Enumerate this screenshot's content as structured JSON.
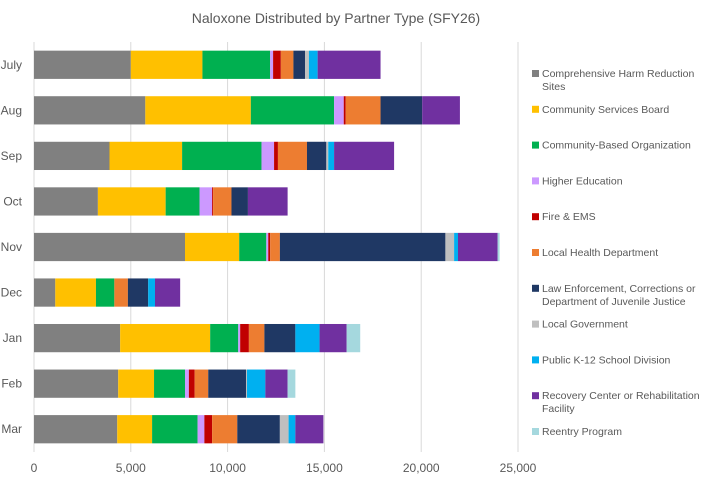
{
  "chart_data": {
    "type": "bar",
    "orientation": "horizontal",
    "stacked": true,
    "title": "Naloxone Distributed by Partner Type (SFY26)",
    "xlabel": "",
    "ylabel": "",
    "xlim": [
      0,
      25000
    ],
    "x_ticks": [
      "0",
      "5,000",
      "10,000",
      "15,000",
      "20,000",
      "25,000"
    ],
    "x_tick_values": [
      0,
      5000,
      10000,
      15000,
      20000,
      25000
    ],
    "grid": true,
    "legend_position": "right",
    "categories": [
      "July",
      "Aug",
      "Sep",
      "Oct",
      "Nov",
      "Dec",
      "Jan",
      "Feb",
      "Mar"
    ],
    "series": [
      {
        "name": "Comprehensive Harm Reduction Sites",
        "color": "#808080",
        "values": [
          5000,
          5750,
          3900,
          3300,
          7800,
          1100,
          4450,
          4350,
          4300
        ]
      },
      {
        "name": "Community Services Board",
        "color": "#FFC000",
        "values": [
          3700,
          5450,
          3750,
          3500,
          2800,
          2100,
          4650,
          1850,
          1800
        ]
      },
      {
        "name": "Community-Based Organization",
        "color": "#00B050",
        "values": [
          3500,
          4300,
          4100,
          1750,
          1400,
          950,
          1450,
          1600,
          2350
        ]
      },
      {
        "name": "Higher Education",
        "color": "#CC99FF",
        "values": [
          150,
          500,
          650,
          650,
          100,
          0,
          100,
          200,
          350
        ]
      },
      {
        "name": "Fire & EMS",
        "color": "#C00000",
        "values": [
          400,
          100,
          200,
          50,
          100,
          0,
          450,
          300,
          400
        ]
      },
      {
        "name": "Local Health Department",
        "color": "#ED7D31",
        "values": [
          650,
          1800,
          1500,
          950,
          500,
          700,
          800,
          700,
          1300
        ]
      },
      {
        "name": "Law Enforcement, Corrections or Department of Juvenile Justice",
        "color": "#1F3864",
        "values": [
          600,
          2150,
          1000,
          850,
          8550,
          1050,
          1600,
          1950,
          2200
        ]
      },
      {
        "name": "Local Government",
        "color": "#BFBFBF",
        "values": [
          200,
          0,
          100,
          0,
          450,
          0,
          0,
          50,
          450
        ]
      },
      {
        "name": "Public K-12 School Division",
        "color": "#00B0F0",
        "values": [
          450,
          0,
          300,
          0,
          200,
          350,
          1250,
          950,
          350
        ]
      },
      {
        "name": "Recovery Center or Rehabilitation Facility",
        "color": "#7030A0",
        "values": [
          3250,
          1950,
          3100,
          2050,
          2050,
          1300,
          1400,
          1150,
          1450
        ]
      },
      {
        "name": "Reentry Program",
        "color": "#A5D8DE",
        "values": [
          0,
          0,
          0,
          0,
          100,
          0,
          700,
          400,
          0
        ]
      }
    ]
  }
}
